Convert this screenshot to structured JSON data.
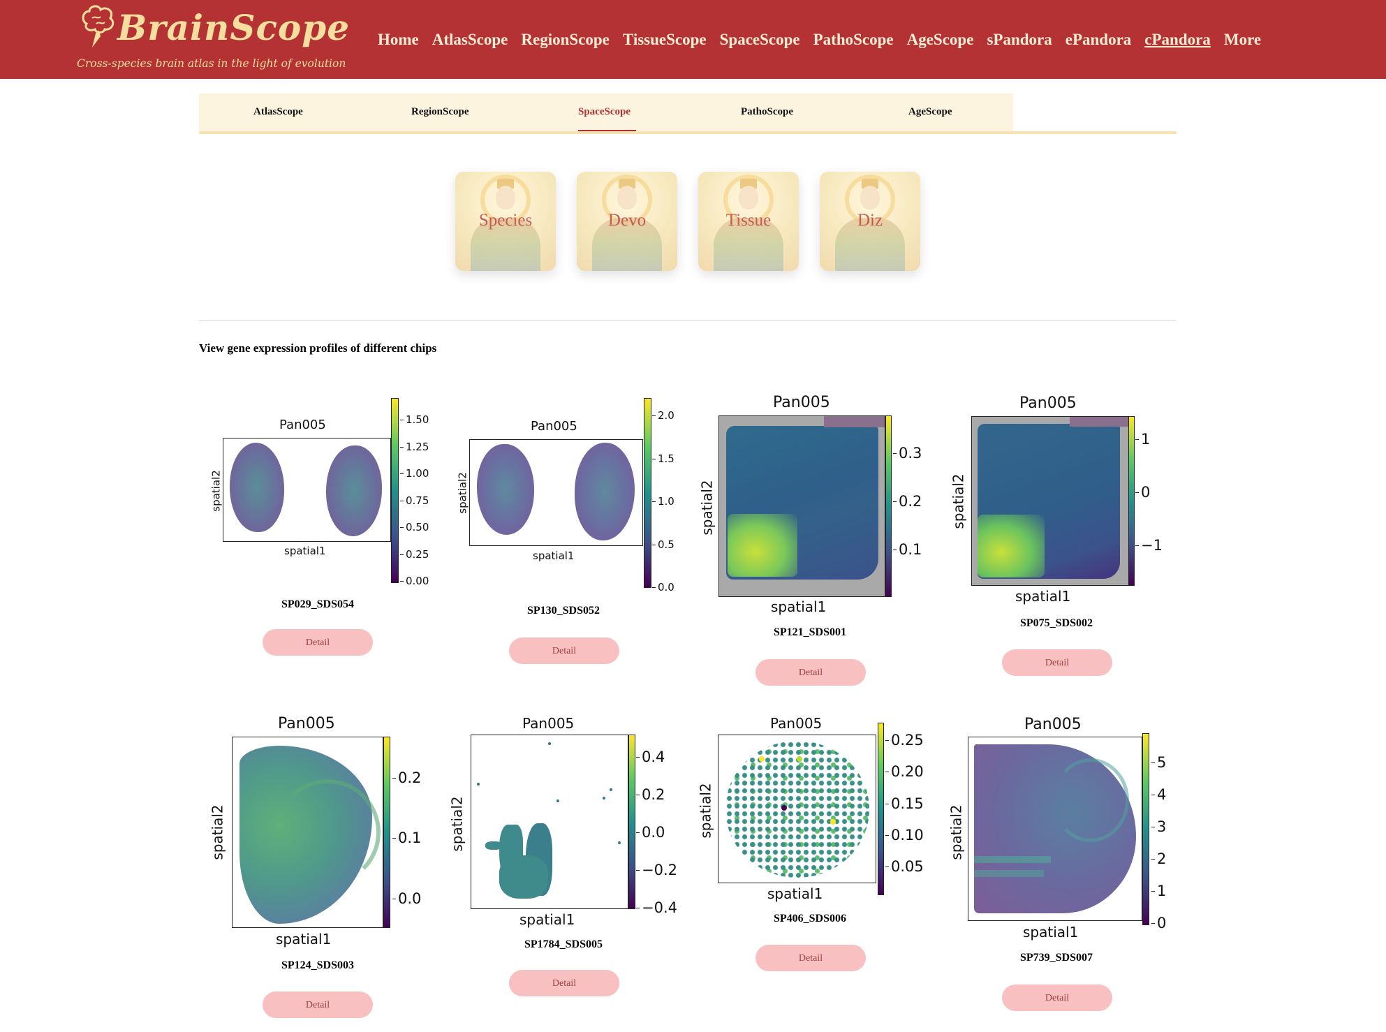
{
  "header": {
    "logo_title": "BrainScope",
    "logo_tagline": "Cross-species brain atlas in the light of evolution",
    "nav": [
      "Home",
      "AtlasScope",
      "RegionScope",
      "TissueScope",
      "SpaceScope",
      "PathoScope",
      "AgeScope",
      "sPandora",
      "ePandora",
      "cPandora",
      "More"
    ],
    "nav_current": "cPandora"
  },
  "subnav": {
    "items": [
      "AtlasScope",
      "RegionScope",
      "SpaceScope",
      "PathoScope",
      "AgeScope"
    ],
    "active": "SpaceScope"
  },
  "cards": [
    {
      "label": "Species"
    },
    {
      "label": "Devo"
    },
    {
      "label": "Tissue"
    },
    {
      "label": "Diz"
    }
  ],
  "section_title": "View gene expression profiles of different chips",
  "detail_label": "Detail",
  "colors": {
    "brand_red": "#b43234",
    "logo_gold": "#f6df9e",
    "subnav_bg": "#fdf4df",
    "detail_bg": "#f9c0c1"
  },
  "panels": [
    {
      "title": "Pan005",
      "xlabel": "spatial1",
      "ylabel": "spatial2",
      "chip": "SP029_SDS054",
      "ticks": [
        "1.50",
        "1.25",
        "1.00",
        "0.75",
        "0.50",
        "0.25",
        "0.00"
      ]
    },
    {
      "title": "Pan005",
      "xlabel": "spatial1",
      "ylabel": "spatial2",
      "chip": "SP130_SDS052",
      "ticks": [
        "2.0",
        "1.5",
        "1.0",
        "0.5",
        "0.0"
      ]
    },
    {
      "title": "Pan005",
      "xlabel": "spatial1",
      "ylabel": "spatial2",
      "chip": "SP121_SDS001",
      "ticks": [
        "0.3",
        "0.2",
        "0.1"
      ]
    },
    {
      "title": "Pan005",
      "xlabel": "spatial1",
      "ylabel": "spatial2",
      "chip": "SP075_SDS002",
      "ticks": [
        "1",
        "0",
        "−1"
      ]
    },
    {
      "title": "Pan005",
      "xlabel": "spatial1",
      "ylabel": "spatial2",
      "chip": "SP124_SDS003",
      "ticks": [
        "0.2",
        "0.1",
        "0.0"
      ]
    },
    {
      "title": "Pan005",
      "xlabel": "spatial1",
      "ylabel": "spatial2",
      "chip": "SP1784_SDS005",
      "ticks": [
        "0.4",
        "0.2",
        "0.0",
        "−0.2",
        "−0.4"
      ]
    },
    {
      "title": "Pan005",
      "xlabel": "spatial1",
      "ylabel": "spatial2",
      "chip": "SP406_SDS006",
      "ticks": [
        "0.25",
        "0.20",
        "0.15",
        "0.10",
        "0.05"
      ]
    },
    {
      "title": "Pan005",
      "xlabel": "spatial1",
      "ylabel": "spatial2",
      "chip": "SP739_SDS007",
      "ticks": [
        "5",
        "4",
        "3",
        "2",
        "1",
        "0"
      ]
    }
  ]
}
